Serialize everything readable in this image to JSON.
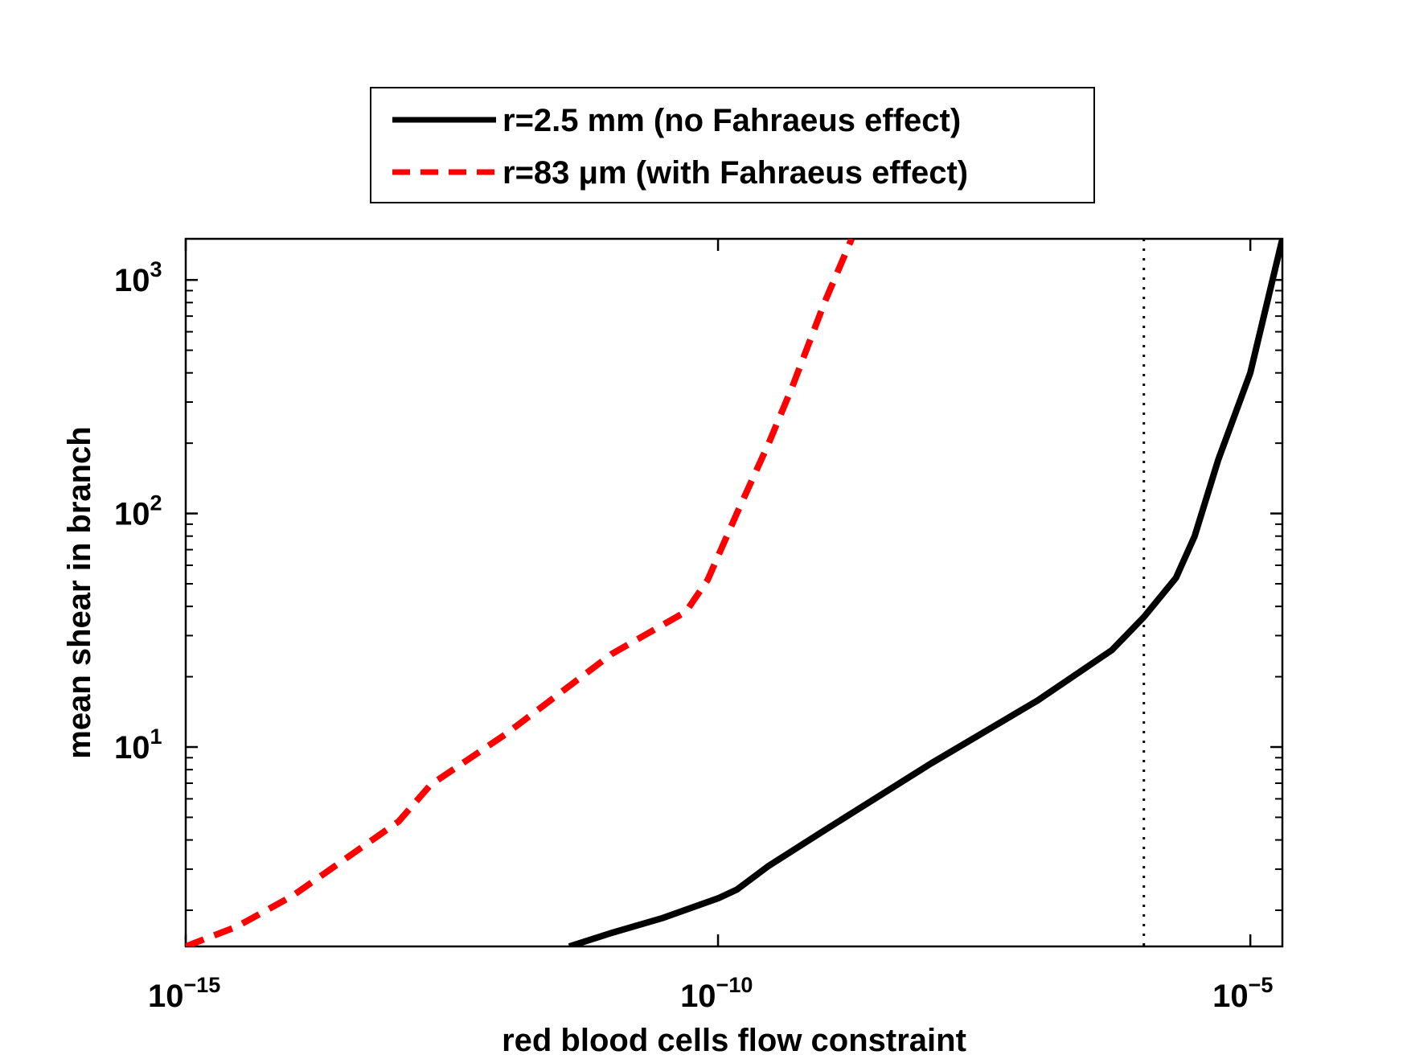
{
  "chart_data": {
    "type": "line",
    "xscale": "log",
    "yscale": "log",
    "xlim": [
      1e-15,
      2e-05
    ],
    "ylim": [
      1.4,
      1500
    ],
    "xlabel": "red blood cells flow constraint",
    "ylabel": "mean shear in branch",
    "x_ticks": [
      {
        "base": "10",
        "exp": "−15",
        "value": 1e-15
      },
      {
        "base": "10",
        "exp": "−10",
        "value": 1e-10
      },
      {
        "base": "10",
        "exp": "−5",
        "value": 1e-05
      }
    ],
    "y_ticks": [
      {
        "base": "10",
        "exp": "1",
        "value": 10
      },
      {
        "base": "10",
        "exp": "2",
        "value": 100
      },
      {
        "base": "10",
        "exp": "3",
        "value": 1000
      }
    ],
    "vline": {
      "x": 1e-06,
      "style": "dotted",
      "color": "#000000"
    },
    "series": [
      {
        "name": "r=2.5 mm (no Fahraeus effect)",
        "color": "#000000",
        "style": "solid",
        "x": [
          4e-12,
          1e-11,
          3e-11,
          1e-10,
          1.5e-10,
          3e-10,
          1e-09,
          1e-08,
          1e-07,
          5e-07,
          1e-06,
          2e-06,
          3e-06,
          5e-06,
          1e-05,
          2e-05
        ],
        "y": [
          1.4,
          1.6,
          1.85,
          2.25,
          2.45,
          3.1,
          4.4,
          8.5,
          15.8,
          26,
          36,
          53,
          80,
          170,
          400,
          1500
        ]
      },
      {
        "name": "r=83 μm (with Fahraeus effect)",
        "color": "#ff0000",
        "style": "dashed",
        "x": [
          1e-15,
          3e-15,
          1e-14,
          1e-13,
          2e-13,
          1e-12,
          1e-11,
          5e-11,
          8e-11,
          1.5e-10,
          3e-10,
          5e-10,
          1e-09,
          1.8e-09
        ],
        "y": [
          1.4,
          1.7,
          2.3,
          4.8,
          6.9,
          11.3,
          25,
          38,
          52,
          100,
          200,
          350,
          800,
          1500
        ]
      }
    ]
  }
}
